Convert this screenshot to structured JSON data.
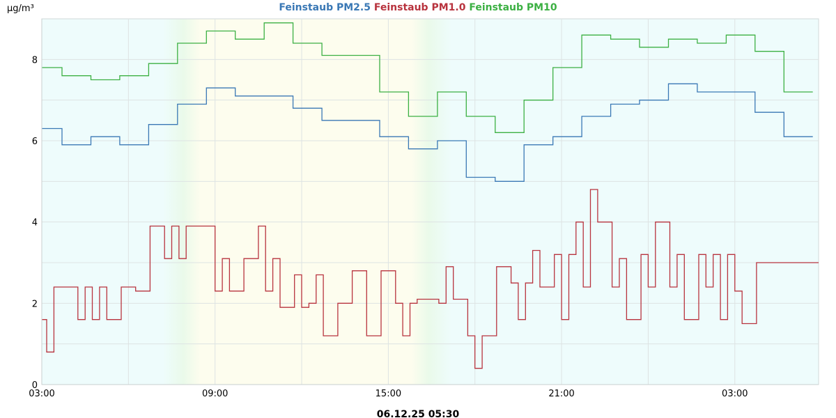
{
  "chart_data": {
    "type": "line",
    "step": true,
    "title_parts": [
      {
        "text": "Feinstaub PM2.5",
        "color": "#3a78b5"
      },
      {
        "text": "Feinstaub PM1.0",
        "color": "#b8333e"
      },
      {
        "text": "Feinstaub PM10",
        "color": "#3cb043"
      }
    ],
    "ylabel": "µg/m³",
    "footer": "06.12.25 05:30",
    "x_unit": "hours since 03:00 (05.12.25)",
    "xlim": [
      0,
      26.9
    ],
    "ylim": [
      0,
      9
    ],
    "y_ticks": [
      0,
      2,
      4,
      6,
      8
    ],
    "x_ticks": [
      {
        "value": 0,
        "label": "03:00"
      },
      {
        "value": 6,
        "label": "09:00"
      },
      {
        "value": 12,
        "label": "15:00"
      },
      {
        "value": 18,
        "label": "21:00"
      },
      {
        "value": 24,
        "label": "03:00"
      }
    ],
    "grid": true,
    "background_colors": {
      "night": "#eefcfc",
      "day": "#fdfdee",
      "transition": "#eafaea"
    },
    "series": [
      {
        "name": "Feinstaub PM10",
        "color": "#3cb043",
        "x": [
          0,
          0.7,
          1.7,
          2.7,
          3.7,
          4.7,
          5.7,
          6.7,
          7.7,
          8.7,
          9.7,
          10.7,
          11.7,
          12.7,
          13.7,
          14.7,
          15.7,
          16.7,
          17.7,
          18.7,
          19.7,
          20.7,
          21.7,
          22.7,
          23.7,
          24.7,
          25.7,
          26.7
        ],
        "values": [
          7.8,
          7.6,
          7.5,
          7.6,
          7.9,
          8.4,
          8.7,
          8.5,
          8.9,
          8.4,
          8.1,
          8.1,
          7.2,
          6.6,
          7.2,
          6.6,
          6.2,
          7.0,
          7.8,
          8.6,
          8.5,
          8.3,
          8.5,
          8.4,
          8.6,
          8.2,
          7.2,
          7.2
        ]
      },
      {
        "name": "Feinstaub PM2.5",
        "color": "#3a78b5",
        "x": [
          0,
          0.7,
          1.7,
          2.7,
          3.7,
          4.7,
          5.7,
          6.7,
          7.7,
          8.7,
          9.7,
          10.7,
          11.7,
          12.7,
          13.7,
          14.7,
          15.7,
          16.7,
          17.7,
          18.7,
          19.7,
          20.7,
          21.7,
          22.7,
          23.7,
          24.7,
          25.7,
          26.7
        ],
        "values": [
          6.3,
          5.9,
          6.1,
          5.9,
          6.4,
          6.9,
          7.3,
          7.1,
          7.1,
          6.8,
          6.5,
          6.5,
          6.1,
          5.8,
          6.0,
          5.1,
          5.0,
          5.9,
          6.1,
          6.6,
          6.9,
          7.0,
          7.4,
          7.2,
          7.2,
          6.7,
          6.1,
          6.1
        ]
      },
      {
        "name": "Feinstaub PM1.0",
        "color": "#b8333e",
        "x": [
          0,
          0.17,
          0.42,
          0.67,
          1.25,
          1.5,
          1.75,
          2.0,
          2.25,
          2.75,
          3.25,
          3.75,
          4.25,
          4.5,
          4.75,
          5.0,
          5.25,
          6.0,
          6.25,
          6.5,
          7.0,
          7.5,
          7.75,
          8.0,
          8.25,
          8.75,
          9.0,
          9.25,
          9.5,
          9.75,
          10.25,
          10.75,
          11.25,
          11.75,
          12.25,
          12.5,
          12.75,
          13.0,
          13.75,
          14.0,
          14.25,
          14.75,
          15.0,
          15.25,
          15.75,
          16.25,
          16.5,
          16.75,
          17.0,
          17.25,
          17.75,
          18.0,
          18.25,
          18.5,
          18.75,
          19.0,
          19.25,
          19.75,
          20.0,
          20.25,
          20.75,
          21.0,
          21.25,
          21.75,
          22.0,
          22.25,
          22.75,
          23.0,
          23.25,
          23.5,
          23.75,
          24.0,
          24.25,
          24.75,
          25.25,
          25.75,
          26.5,
          26.9
        ],
        "values": [
          1.6,
          0.8,
          2.4,
          2.4,
          1.6,
          2.4,
          1.6,
          2.4,
          1.6,
          2.4,
          2.3,
          3.9,
          3.1,
          3.9,
          3.1,
          3.9,
          3.9,
          2.3,
          3.1,
          2.3,
          3.1,
          3.9,
          2.3,
          3.1,
          1.9,
          2.7,
          1.9,
          2.0,
          2.7,
          1.2,
          2.0,
          2.8,
          1.2,
          2.8,
          2.0,
          1.2,
          2.0,
          2.1,
          2.0,
          2.9,
          2.1,
          1.2,
          0.4,
          1.2,
          2.9,
          2.5,
          1.6,
          2.5,
          3.3,
          2.4,
          3.2,
          1.6,
          3.2,
          4.0,
          2.4,
          4.8,
          4.0,
          2.4,
          3.1,
          1.6,
          3.2,
          2.4,
          4.0,
          2.4,
          3.2,
          1.6,
          3.2,
          2.4,
          3.2,
          1.6,
          3.2,
          2.3,
          1.5,
          3.0,
          3.0,
          3.0,
          3.0,
          3.0
        ]
      }
    ]
  }
}
